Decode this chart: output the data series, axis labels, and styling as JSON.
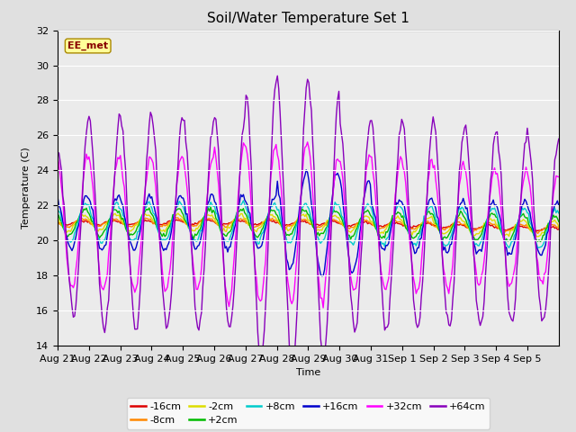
{
  "title": "Soil/Water Temperature Set 1",
  "xlabel": "Time",
  "ylabel": "Temperature (C)",
  "watermark": "EE_met",
  "ylim": [
    14,
    32
  ],
  "yticks": [
    14,
    16,
    18,
    20,
    22,
    24,
    26,
    28,
    30,
    32
  ],
  "x_labels": [
    "Aug 21",
    "Aug 22",
    "Aug 23",
    "Aug 24",
    "Aug 25",
    "Aug 26",
    "Aug 27",
    "Aug 28",
    "Aug 29",
    "Aug 30",
    "Aug 31",
    "Sep 1",
    "Sep 2",
    "Sep 3",
    "Sep 4",
    "Sep 5"
  ],
  "n_days": 16,
  "pts_per_day": 24,
  "base_temp": 21.0,
  "series": {
    "-16cm": {
      "color": "#dd0000",
      "lw": 1.0,
      "amp": 0.15,
      "phase": 0.0
    },
    "-8cm": {
      "color": "#ff8800",
      "lw": 1.0,
      "amp": 0.25,
      "phase": 0.1
    },
    "-2cm": {
      "color": "#dddd00",
      "lw": 1.0,
      "amp": 0.5,
      "phase": 0.2
    },
    "+2cm": {
      "color": "#00bb00",
      "lw": 1.0,
      "amp": 0.8,
      "phase": 0.3
    },
    "+8cm": {
      "color": "#00cccc",
      "lw": 1.0,
      "amp": 1.2,
      "phase": 0.4
    },
    "+16cm": {
      "color": "#0000cc",
      "lw": 1.0,
      "amp": 1.8,
      "phase": 0.5
    },
    "+32cm": {
      "color": "#ff00ff",
      "lw": 1.0,
      "amp": 4.0,
      "phase": 0.6
    },
    "+64cm": {
      "color": "#8800bb",
      "lw": 1.0,
      "amp": 6.5,
      "phase": 0.7
    }
  },
  "bg_color": "#e0e0e0",
  "plot_bg": "#ebebeb",
  "grid_color": "#ffffff",
  "title_fontsize": 11,
  "label_fontsize": 8,
  "tick_fontsize": 8,
  "legend_fontsize": 8
}
